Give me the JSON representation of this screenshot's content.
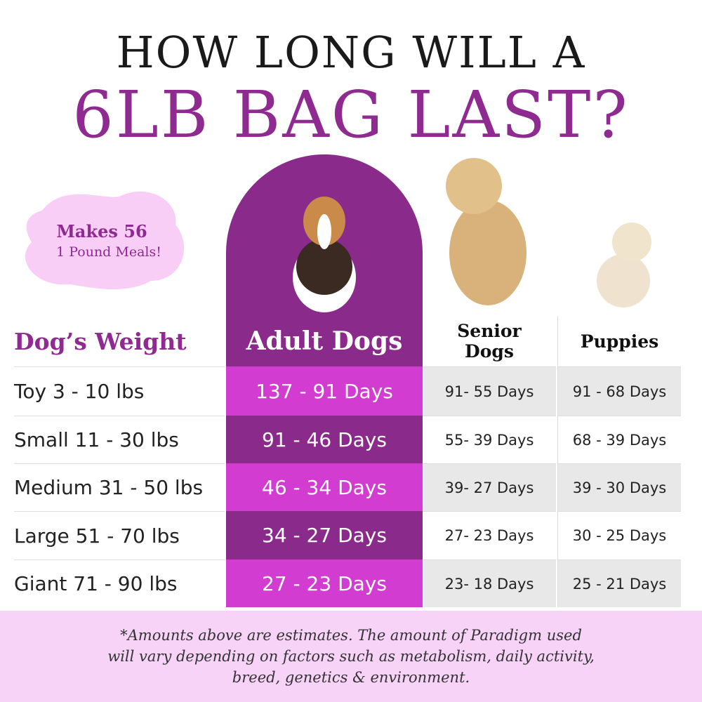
{
  "header": {
    "title_line1": "HOW LONG WILL A",
    "title_line2": "6LB BAG LAST?"
  },
  "badge": {
    "line1": "Makes 56",
    "line2": "1 Pound Meals!"
  },
  "table": {
    "headers": [
      "Dog’s Weight",
      "Adult Dogs",
      "Senior Dogs",
      "Puppies"
    ],
    "rows": [
      [
        "Toy 3 - 10 lbs",
        "137 - 91 Days",
        "91- 55 Days",
        "91 - 68 Days"
      ],
      [
        "Small 11 - 30 lbs",
        "91 - 46 Days",
        "55- 39 Days",
        "68 - 39 Days"
      ],
      [
        "Medium 31 - 50 lbs",
        "46 - 34 Days",
        "39- 27 Days",
        "39 - 30 Days"
      ],
      [
        "Large 51 - 70 lbs",
        "34 - 27 Days",
        "27- 23 Days",
        "30 - 25 Days"
      ],
      [
        "Giant 71 - 90 lbs",
        "27 - 23 Days",
        "23- 18 Days",
        "25 - 21 Days"
      ]
    ]
  },
  "footnote": {
    "lines": [
      "*Amounts above are estimates. The amount of Paradigm used",
      "will vary depending on factors such as metabolism, daily activity,",
      "breed, genetics & environment."
    ]
  }
}
